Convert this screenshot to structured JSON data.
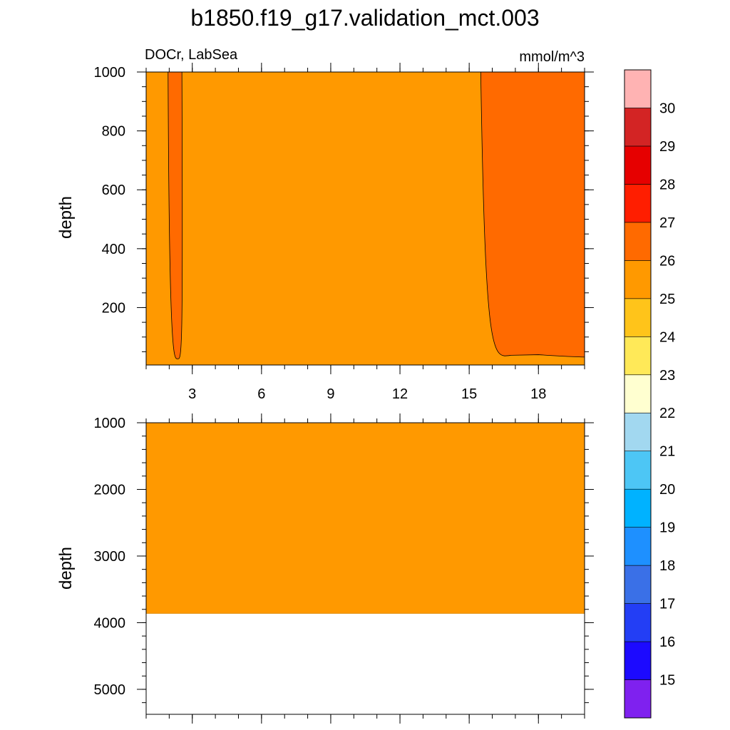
{
  "title": "b1850.f19_g17.validation_mct.003",
  "variable_label": "DOCr, LabSea",
  "units_label": "mmol/m^3",
  "colors": {
    "field": "#ff9900",
    "high_patch": "#ff6a00",
    "outline": "#000000",
    "background": "#ffffff"
  },
  "chart_data": [
    {
      "type": "heatmap",
      "name": "upper-panel",
      "title": "",
      "xlabel": "",
      "ylabel": "depth",
      "xlim": [
        1,
        20
      ],
      "ylim": [
        1000,
        5
      ],
      "xticks": [
        3,
        6,
        9,
        12,
        15,
        18
      ],
      "xtick_labels": [
        "3",
        "6",
        "9",
        "12",
        "15",
        "18"
      ],
      "yticks": [
        200,
        400,
        600,
        800,
        1000
      ],
      "ytick_labels": [
        "200",
        "400",
        "600",
        "800",
        "1000"
      ],
      "y_minor_step": 50,
      "x_minor_step": 1,
      "fill_value_range": [
        25,
        26
      ],
      "features": [
        {
          "label": "25-26 mmol/m^3 band",
          "x_range": [
            1,
            20
          ],
          "depth_range": [
            5,
            1000
          ]
        },
        {
          "label": "26-27 mmol/m^3 patch",
          "x_range": [
            15.5,
            20
          ],
          "depth_range": [
            5,
            40
          ]
        },
        {
          "label": "26-27 mmol/m^3 patch",
          "x_range": [
            2,
            2.6
          ],
          "depth_range": [
            5,
            25
          ]
        }
      ],
      "grid": false
    },
    {
      "type": "heatmap",
      "name": "lower-panel",
      "title": "",
      "xlabel": "",
      "ylabel": "depth",
      "xlim": [
        1,
        20
      ],
      "ylim": [
        1000,
        5375
      ],
      "xticks": [
        3,
        6,
        9,
        12,
        15,
        18
      ],
      "xtick_labels": [
        "",
        "",
        "",
        "",
        "",
        ""
      ],
      "yticks": [
        1000,
        2000,
        3000,
        4000,
        5000
      ],
      "ytick_labels": [
        "1000",
        "2000",
        "3000",
        "4000",
        "5000"
      ],
      "y_minor_step": 200,
      "x_minor_step": 1,
      "fill_value_range": [
        25,
        26
      ],
      "data_bottom_depth": 3860,
      "grid": false
    }
  ],
  "colorbar": {
    "boundaries": [
      15,
      16,
      17,
      18,
      19,
      20,
      21,
      22,
      23,
      24,
      25,
      26,
      27,
      28,
      29,
      30
    ],
    "labels": [
      "15",
      "16",
      "17",
      "18",
      "19",
      "20",
      "21",
      "22",
      "23",
      "24",
      "25",
      "26",
      "27",
      "28",
      "29",
      "30"
    ],
    "colors": [
      "#7f21ef",
      "#1c0aff",
      "#233ef5",
      "#3a70e7",
      "#1e90ff",
      "#00b2ff",
      "#4dc6f5",
      "#a2d8f0",
      "#ffffd0",
      "#ffe958",
      "#ffc41a",
      "#ff9900",
      "#ff6a00",
      "#ff1e00",
      "#e60000",
      "#d32424",
      "#ffb3b3"
    ]
  }
}
